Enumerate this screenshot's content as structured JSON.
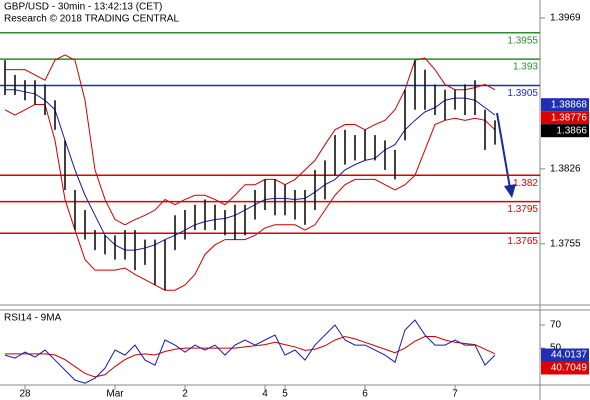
{
  "header": {
    "title": "GBP/USD - 30min - 13:42:13 (CET)",
    "subtitle": "Research © 2018 TRADING CENTRAL"
  },
  "chart_data": [
    {
      "type": "ohlc",
      "categories": [
        null,
        null,
        "28",
        null,
        null,
        null,
        null,
        null,
        null,
        null,
        null,
        "Mar",
        null,
        null,
        null,
        null,
        null,
        null,
        "2",
        null,
        null,
        null,
        null,
        null,
        null,
        null,
        "4",
        null,
        "5",
        null,
        null,
        null,
        null,
        null,
        null,
        null,
        "6",
        null,
        null,
        null,
        null,
        null,
        null,
        null,
        null,
        "7",
        null,
        null,
        null,
        null
      ],
      "high": [
        1.3929,
        1.3915,
        1.391,
        1.391,
        1.3906,
        1.3891,
        1.3853,
        1.3806,
        1.3787,
        1.3768,
        1.3763,
        1.3763,
        1.3768,
        1.3768,
        1.3759,
        1.3759,
        1.3759,
        1.3782,
        1.3787,
        1.3792,
        1.3797,
        1.3792,
        1.3787,
        1.3792,
        1.3792,
        1.3806,
        1.3816,
        1.3816,
        1.3811,
        1.3806,
        1.3806,
        1.3825,
        1.3834,
        1.3858,
        1.3863,
        1.3858,
        1.3863,
        1.3858,
        1.3853,
        1.3844,
        1.3901,
        1.3929,
        1.392,
        1.3906,
        1.3901,
        1.3901,
        1.3906,
        1.391,
        1.3882,
        1.3872
      ],
      "low": [
        1.3896,
        1.3896,
        1.3891,
        1.3887,
        1.3877,
        1.3863,
        1.3806,
        1.3768,
        1.3759,
        1.3749,
        1.3745,
        1.374,
        1.374,
        1.373,
        1.3735,
        1.3716,
        1.3711,
        1.3749,
        1.3759,
        1.3768,
        1.3768,
        1.3768,
        1.3763,
        1.3759,
        1.3763,
        1.3778,
        1.3787,
        1.3782,
        1.3782,
        1.3778,
        1.3773,
        1.3787,
        1.3797,
        1.382,
        1.383,
        1.3834,
        1.3834,
        1.3834,
        1.3825,
        1.3816,
        1.3853,
        1.3882,
        1.3882,
        1.3877,
        1.3872,
        1.3882,
        1.3877,
        1.3877,
        1.3844,
        1.3849
      ],
      "color": "#000000",
      "upper_band": [
        1.392,
        1.392,
        1.392,
        1.3915,
        1.391,
        1.3929,
        1.3934,
        1.3929,
        1.3891,
        1.3825,
        1.3797,
        1.3778,
        1.3773,
        1.3778,
        1.3782,
        1.3787,
        1.3797,
        1.3792,
        1.3797,
        1.3801,
        1.3801,
        1.3797,
        1.3792,
        1.3801,
        1.3811,
        1.3811,
        1.3816,
        1.3816,
        1.3811,
        1.3816,
        1.3825,
        1.3834,
        1.3849,
        1.3863,
        1.3868,
        1.3868,
        1.3863,
        1.3868,
        1.3872,
        1.3882,
        1.3901,
        1.3929,
        1.3931,
        1.392,
        1.3906,
        1.3901,
        1.3901,
        1.3903,
        1.3906,
        1.3901
      ],
      "lower_band": [
        1.3882,
        1.3877,
        1.3882,
        1.3887,
        1.3887,
        1.3853,
        1.3797,
        1.3768,
        1.374,
        1.373,
        1.373,
        1.373,
        1.3732,
        1.3726,
        1.3721,
        1.3716,
        1.3711,
        1.3711,
        1.3716,
        1.3726,
        1.3745,
        1.3754,
        1.3759,
        1.3759,
        1.3759,
        1.3763,
        1.377,
        1.3773,
        1.3773,
        1.3773,
        1.3768,
        1.3773,
        1.3787,
        1.3801,
        1.3811,
        1.3816,
        1.3816,
        1.3816,
        1.3811,
        1.3806,
        1.3811,
        1.382,
        1.3844,
        1.3868,
        1.3872,
        1.3874,
        1.3872,
        1.3874,
        1.3872,
        1.3863
      ],
      "band_color": "#cc0000",
      "moving_average": [
        1.3901,
        1.3901,
        1.3899,
        1.3897,
        1.3891,
        1.3882,
        1.3853,
        1.3825,
        1.3801,
        1.3782,
        1.3763,
        1.3754,
        1.3749,
        1.3749,
        1.3751,
        1.3754,
        1.3759,
        1.3763,
        1.3768,
        1.3773,
        1.3776,
        1.3778,
        1.3779,
        1.3782,
        1.3787,
        1.3792,
        1.3797,
        1.3798,
        1.3798,
        1.3797,
        1.3798,
        1.3804,
        1.3811,
        1.3816,
        1.3825,
        1.383,
        1.3834,
        1.3836,
        1.3844,
        1.3849,
        1.3863,
        1.3872,
        1.388,
        1.3884,
        1.3891,
        1.3893,
        1.3893,
        1.3891,
        1.3884,
        1.3877
      ],
      "ma_color": "#1a1aaa",
      "levels": [
        {
          "value": 1.3955,
          "color": "#2e8b2e"
        },
        {
          "value": 1.393,
          "color": "#2e8b2e"
        },
        {
          "value": 1.3905,
          "color": "#1f2fb0"
        },
        {
          "value": 1.382,
          "color": "#dd0000"
        },
        {
          "value": 1.3795,
          "color": "#dd0000"
        },
        {
          "value": 1.3765,
          "color": "#dd0000"
        }
      ],
      "markers": [
        {
          "value": 1.38868,
          "color": "#1f2fb0"
        },
        {
          "value": 1.38776,
          "color": "#dd0000"
        },
        {
          "value": 1.3866,
          "color": "#000000"
        }
      ],
      "ylim": [
        1.3697,
        1.3986
      ],
      "yticks": [
        1.3755,
        1.3826,
        1.3969
      ]
    },
    {
      "type": "line",
      "title": "RSI14 - 9MA",
      "rsi": [
        43.9,
        41.3,
        46.5,
        42.2,
        48.3,
        39.6,
        30.9,
        22.2,
        19.6,
        23.9,
        32.6,
        48.3,
        43.9,
        52.6,
        39.6,
        35.2,
        57.0,
        52.6,
        46.5,
        52.6,
        48.3,
        52.6,
        43.9,
        52.6,
        57.0,
        52.6,
        57.0,
        61.3,
        43.9,
        48.3,
        39.6,
        52.6,
        61.3,
        70.0,
        57.0,
        52.6,
        52.6,
        48.3,
        43.9,
        37.8,
        65.7,
        74.3,
        61.3,
        52.6,
        52.6,
        57.0,
        52.6,
        52.6,
        35.2,
        43.9
      ],
      "rsi_color": "#1a1aaa",
      "rsi_ma": [
        45,
        45,
        45,
        45,
        45,
        44,
        40,
        34,
        28,
        25,
        27,
        34,
        40,
        44,
        45,
        44,
        47,
        49,
        50,
        50,
        50,
        50,
        50,
        50,
        51,
        52,
        53,
        55,
        53,
        51,
        48,
        49,
        52,
        57,
        60,
        58,
        55,
        52,
        49,
        46,
        50,
        56,
        60,
        60,
        57,
        55,
        54,
        53,
        49,
        45
      ],
      "rsi_ma_color": "#cc0000",
      "markers": [
        {
          "value": 44.0137,
          "color": "#1f2fb0"
        },
        {
          "value": 40.7049,
          "color": "#dd0000"
        }
      ],
      "ylim": [
        18,
        83
      ],
      "yticks": [
        50,
        70
      ]
    }
  ]
}
